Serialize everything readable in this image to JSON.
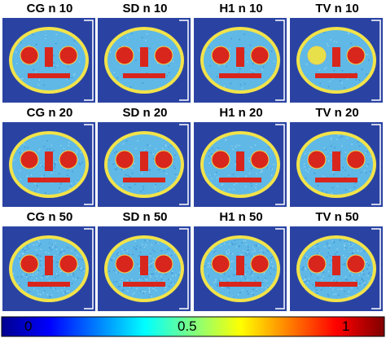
{
  "panels": [
    {
      "title": "CG n 10",
      "method": "CG",
      "noise": 10
    },
    {
      "title": "SD n 10",
      "method": "SD",
      "noise": 10
    },
    {
      "title": "H1 n 10",
      "method": "H1",
      "noise": 10
    },
    {
      "title": "TV n 10",
      "method": "TV",
      "noise": 10
    },
    {
      "title": "CG n 20",
      "method": "CG",
      "noise": 20
    },
    {
      "title": "SD n 20",
      "method": "SD",
      "noise": 20
    },
    {
      "title": "H1 n 20",
      "method": "H1",
      "noise": 20
    },
    {
      "title": "TV n 20",
      "method": "TV",
      "noise": 20
    },
    {
      "title": "CG n 50",
      "method": "CG",
      "noise": 50
    },
    {
      "title": "SD n 50",
      "method": "SD",
      "noise": 50
    },
    {
      "title": "H1 n 50",
      "method": "H1",
      "noise": 50
    },
    {
      "title": "TV n 50",
      "method": "TV",
      "noise": 50
    }
  ],
  "colorbar": {
    "ticks": [
      "0",
      "0.5",
      "1"
    ],
    "tick_values": [
      0,
      0.5,
      1
    ],
    "range": [
      -0.2,
      1.15
    ],
    "colormap": "jet"
  },
  "colors": {
    "background": "#2a43a3",
    "face": "#5fb8e6",
    "rim": "#f2e34a",
    "features": "#d8261c"
  }
}
